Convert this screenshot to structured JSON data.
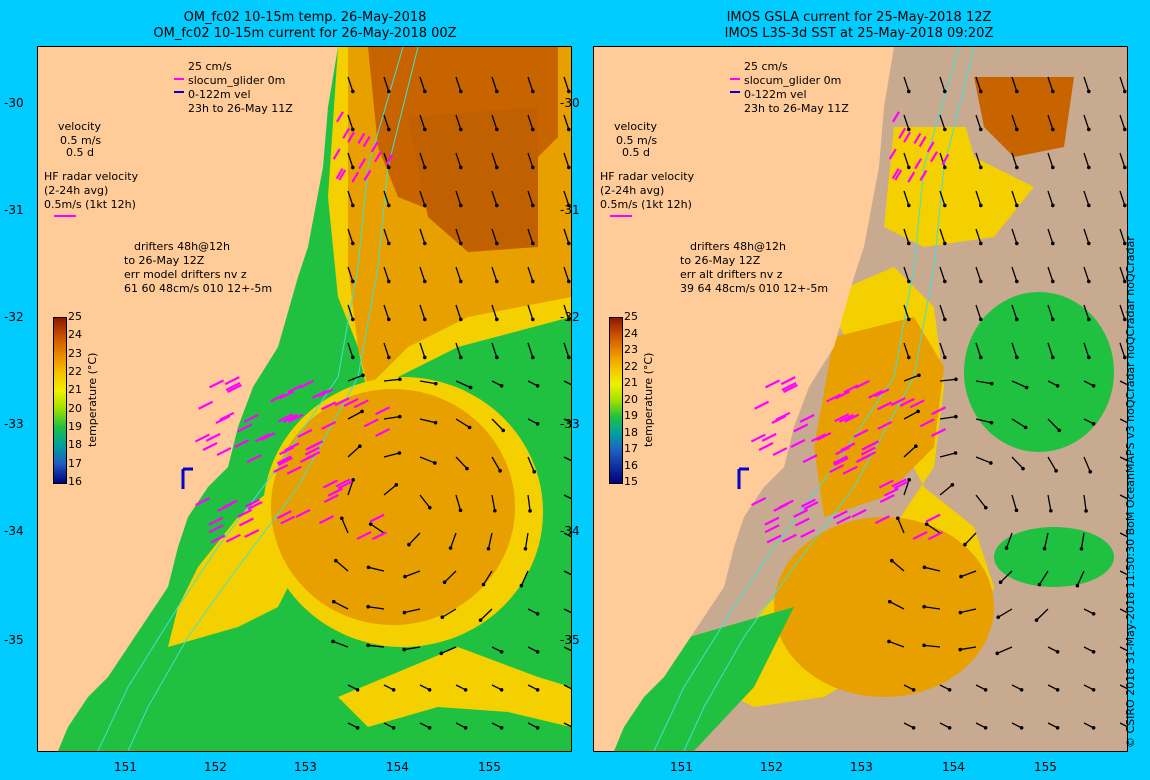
{
  "left": {
    "title1": "OM_fc02 10-15m temp. 26-May-2018",
    "title2": "OM_fc02 10-15m current for 26-May-2018 00Z",
    "legend": {
      "scale_speed": "25 cm/s",
      "glider_label": "slocum_glider 0m",
      "vel_label": "0-122m vel",
      "time_label": "23h to 26-May 11Z",
      "velocity": "velocity",
      "vel_ref1": "0.5 m/s",
      "vel_ref2": "0.5 d",
      "hf1": "HF radar velocity",
      "hf2": "(2-24h avg)",
      "hf3": "0.5m/s (1kt 12h)",
      "drift1": "drifters 48h@12h",
      "drift2": "to 26-May 12Z",
      "drift3": "err model drifters nv z",
      "drift4": "61 60 48cm/s 010 12+-5m"
    },
    "colorbar_ticks": [
      "25",
      "24",
      "23",
      "22",
      "21",
      "20",
      "19",
      "18",
      "17",
      "16"
    ],
    "colorbar_label": "temperature (°C)"
  },
  "right": {
    "title1": "IMOS GSLA current for 25-May-2018 12Z",
    "title2": "IMOS L3S-3d SST at 25-May-2018 09:20Z",
    "legend": {
      "scale_speed": "25 cm/s",
      "glider_label": "slocum_glider 0m",
      "vel_label": "0-122m vel",
      "time_label": "23h to 26-May 11Z",
      "velocity": "velocity",
      "vel_ref1": "0.5 m/s",
      "vel_ref2": "0.5 d",
      "hf1": "HF radar velocity",
      "hf2": "(2-24h avg)",
      "hf3": "0.5m/s (1kt 12h)",
      "drift1": "drifters 48h@12h",
      "drift2": "to 26-May 12Z",
      "drift3": "err alt drifters nv z",
      "drift4": "39 64 48cm/s 010 12+-5m"
    },
    "colorbar_ticks": [
      "25",
      "24",
      "23",
      "22",
      "21",
      "20",
      "19",
      "18",
      "17",
      "16",
      "15"
    ],
    "colorbar_label": "temperature (°C)"
  },
  "axes": {
    "lat_ticks": [
      "-30",
      "-31",
      "-32",
      "-33",
      "-34",
      "-35"
    ],
    "lon_ticks": [
      "151",
      "152",
      "153",
      "154",
      "155"
    ]
  },
  "credit": "© CSIRO 2018  31-May-2018 11:50:30 BoM OceanMAPS v3 noQCradar noQCradar noQCradar",
  "colors": {
    "background": "#00ccff",
    "land": "#ffcc99",
    "sea_warm": "#e8a000",
    "sea_hot": "#c86400",
    "sea_mid": "#f5d000",
    "sea_cool": "#20c040",
    "missing": "#c8aa90",
    "vector": "#000000",
    "drifter": "#ff00ff",
    "glider": "#0000cc",
    "contour": "#40e0d0"
  }
}
